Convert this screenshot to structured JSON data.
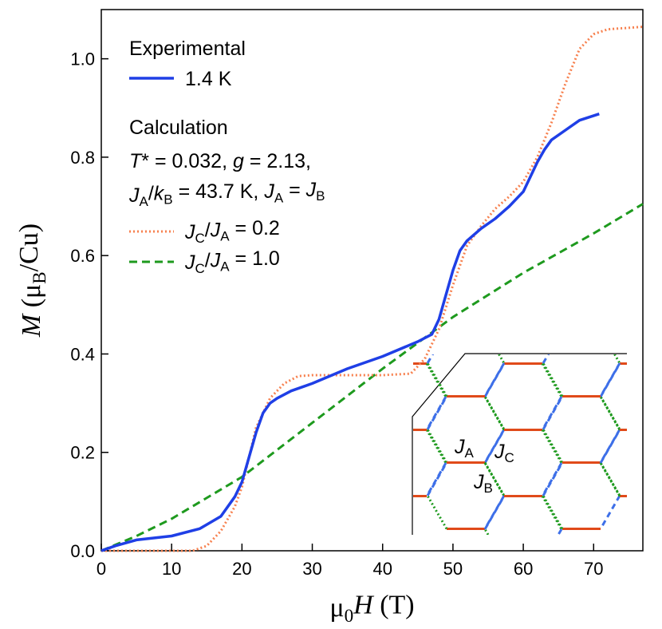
{
  "chart_data": {
    "type": "line",
    "x_label": [
      {
        "t": "μ"
      },
      {
        "t": "0",
        "f": "sub"
      },
      {
        "t": "H",
        "f": "i"
      },
      {
        "t": " (T)"
      }
    ],
    "y_label": [
      {
        "t": "M",
        "f": "i"
      },
      {
        "t": " (μ"
      },
      {
        "t": "B",
        "f": "sub"
      },
      {
        "t": "/Cu)"
      }
    ],
    "xlim": [
      0,
      77
    ],
    "ylim": [
      0,
      1.1
    ],
    "xticks": [
      0,
      10,
      20,
      30,
      40,
      50,
      60,
      70
    ],
    "yticks": [
      {
        "value": 0,
        "label": "0.0"
      },
      0.2,
      0.4,
      0.6,
      0.8,
      {
        "value": 1,
        "label": "1.0"
      }
    ],
    "legend_heading": "Experimental",
    "calc_heading": "Calculation",
    "calc_params": [
      [
        {
          "t": "T",
          "f": "i"
        },
        {
          "t": "* = 0.032, "
        },
        {
          "t": "g",
          "f": "i"
        },
        {
          "t": " = 2.13,"
        }
      ],
      [
        {
          "t": "J",
          "f": "i"
        },
        {
          "t": "A",
          "f": "sub"
        },
        {
          "t": "/"
        },
        {
          "t": "k",
          "f": "i"
        },
        {
          "t": "B",
          "f": "sub"
        },
        {
          "t": " = 43.7 K, "
        },
        {
          "t": "J",
          "f": "i"
        },
        {
          "t": "A",
          "f": "sub"
        },
        {
          "t": " = "
        },
        {
          "t": "J",
          "f": "i"
        },
        {
          "t": "B",
          "f": "sub"
        }
      ]
    ],
    "series": [
      {
        "name": "1.4 K",
        "color": "#1f3fe6",
        "dash": "solid",
        "x": [
          0,
          2,
          5,
          10,
          14,
          17,
          19,
          20,
          21,
          22,
          23,
          24,
          25,
          27,
          30,
          35,
          40,
          45,
          47,
          48,
          49,
          50,
          51,
          52,
          54,
          56,
          58,
          60,
          61,
          62,
          63,
          64,
          66,
          68,
          70.8
        ],
        "values": [
          0,
          0.01,
          0.022,
          0.03,
          0.045,
          0.07,
          0.11,
          0.14,
          0.19,
          0.24,
          0.28,
          0.3,
          0.31,
          0.325,
          0.34,
          0.37,
          0.395,
          0.425,
          0.44,
          0.47,
          0.52,
          0.57,
          0.61,
          0.63,
          0.655,
          0.675,
          0.7,
          0.73,
          0.76,
          0.79,
          0.815,
          0.835,
          0.855,
          0.875,
          0.888
        ]
      },
      {
        "name": [
          {
            "t": "J",
            "f": "i"
          },
          {
            "t": "C",
            "f": "sub"
          },
          {
            "t": "/"
          },
          {
            "t": "J",
            "f": "i"
          },
          {
            "t": "A",
            "f": "sub"
          },
          {
            "t": " = 0.2"
          }
        ],
        "color": "#f7814f",
        "dash": "dotted",
        "x": [
          0,
          13,
          15,
          17,
          19,
          20,
          21,
          22,
          24,
          26,
          28,
          30,
          40,
          44,
          46,
          48,
          50,
          52,
          54,
          56,
          58,
          60,
          62,
          64,
          66,
          68,
          70,
          72,
          77
        ],
        "values": [
          0,
          0,
          0.01,
          0.04,
          0.09,
          0.13,
          0.19,
          0.25,
          0.31,
          0.34,
          0.355,
          0.357,
          0.357,
          0.36,
          0.39,
          0.45,
          0.54,
          0.62,
          0.66,
          0.695,
          0.72,
          0.75,
          0.8,
          0.87,
          0.95,
          1.02,
          1.05,
          1.06,
          1.065
        ]
      },
      {
        "name": [
          {
            "t": "J",
            "f": "i"
          },
          {
            "t": "C",
            "f": "sub"
          },
          {
            "t": "/"
          },
          {
            "t": "J",
            "f": "i"
          },
          {
            "t": "A",
            "f": "sub"
          },
          {
            "t": " = 1.0"
          }
        ],
        "color": "#1e9a1e",
        "dash": "dashed",
        "x": [
          0,
          5,
          10,
          20,
          30,
          40,
          50,
          60,
          70,
          77
        ],
        "values": [
          0,
          0.03,
          0.065,
          0.15,
          0.26,
          0.37,
          0.475,
          0.565,
          0.645,
          0.705
        ]
      }
    ],
    "annotations": [
      [
        {
          "t": "J",
          "f": "i"
        },
        {
          "t": "A",
          "f": "sub"
        }
      ],
      [
        {
          "t": "J",
          "f": "i"
        },
        {
          "t": "C",
          "f": "sub"
        }
      ],
      [
        {
          "t": "J",
          "f": "i"
        },
        {
          "t": "B",
          "f": "sub"
        }
      ]
    ]
  }
}
